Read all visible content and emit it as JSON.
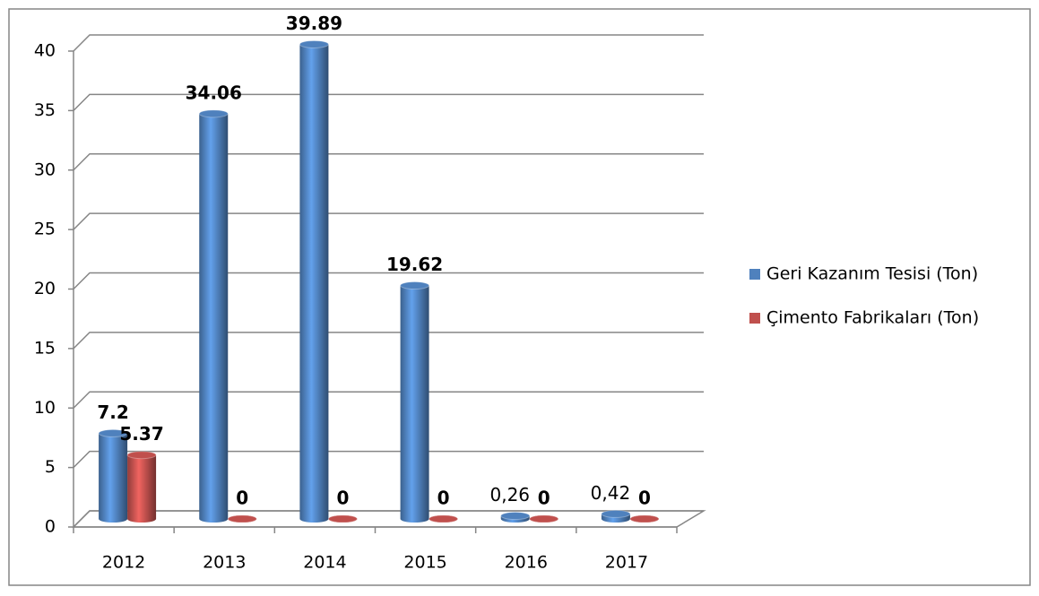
{
  "chart_data": {
    "type": "bar3d",
    "categories": [
      "2012",
      "2013",
      "2014",
      "2015",
      "2016",
      "2017"
    ],
    "series": [
      {
        "name": "Geri Kazanım Tesisi (Ton)",
        "color": "#4f81bd",
        "values": [
          7.2,
          34.06,
          39.89,
          19.62,
          0.26,
          0.42
        ],
        "value_labels": [
          "7.2",
          "34.06",
          "39.89",
          "19.62",
          "0,26",
          "0,42"
        ]
      },
      {
        "name": "Çimento Fabrikaları (Ton)",
        "color": "#c0504d",
        "values": [
          5.37,
          0,
          0,
          0,
          0,
          0
        ],
        "value_labels": [
          "5.37",
          "0",
          "0",
          "0",
          "0",
          "0"
        ]
      }
    ],
    "ylim": [
      0,
      40
    ],
    "yticks": [
      0,
      5,
      10,
      15,
      20,
      25,
      30,
      35,
      40
    ],
    "grid": true,
    "legend": "right"
  }
}
